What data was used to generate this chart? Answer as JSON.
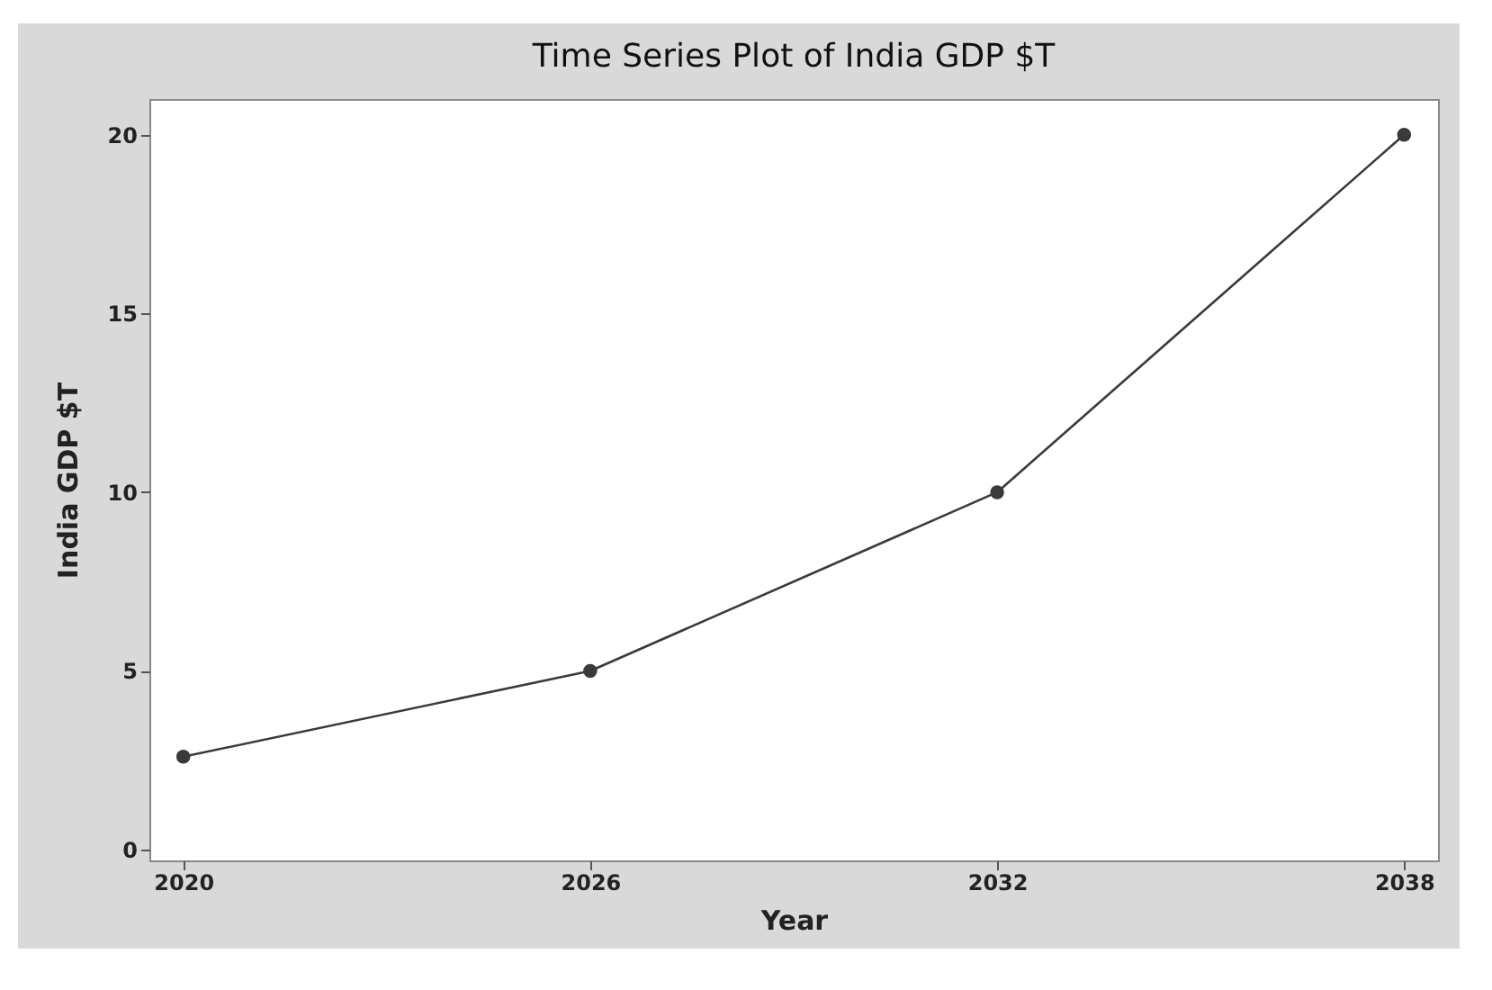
{
  "chart_data": {
    "type": "line",
    "title": "Time Series Plot of India GDP $T",
    "xlabel": "Year",
    "ylabel": "India GDP $T",
    "x": [
      2020,
      2026,
      2032,
      2038
    ],
    "series": [
      {
        "color": "#3a3a3a",
        "values": [
          2.6,
          5,
          10,
          20
        ]
      }
    ],
    "xlim": [
      2019.5,
      2038.5
    ],
    "xticks": [
      2020,
      2026,
      2032,
      2038
    ],
    "ylim": [
      -0.3,
      21
    ],
    "yticks": [
      0,
      5,
      10,
      15,
      20
    ],
    "grid": false,
    "marker": "circle",
    "line_style": "solid"
  }
}
